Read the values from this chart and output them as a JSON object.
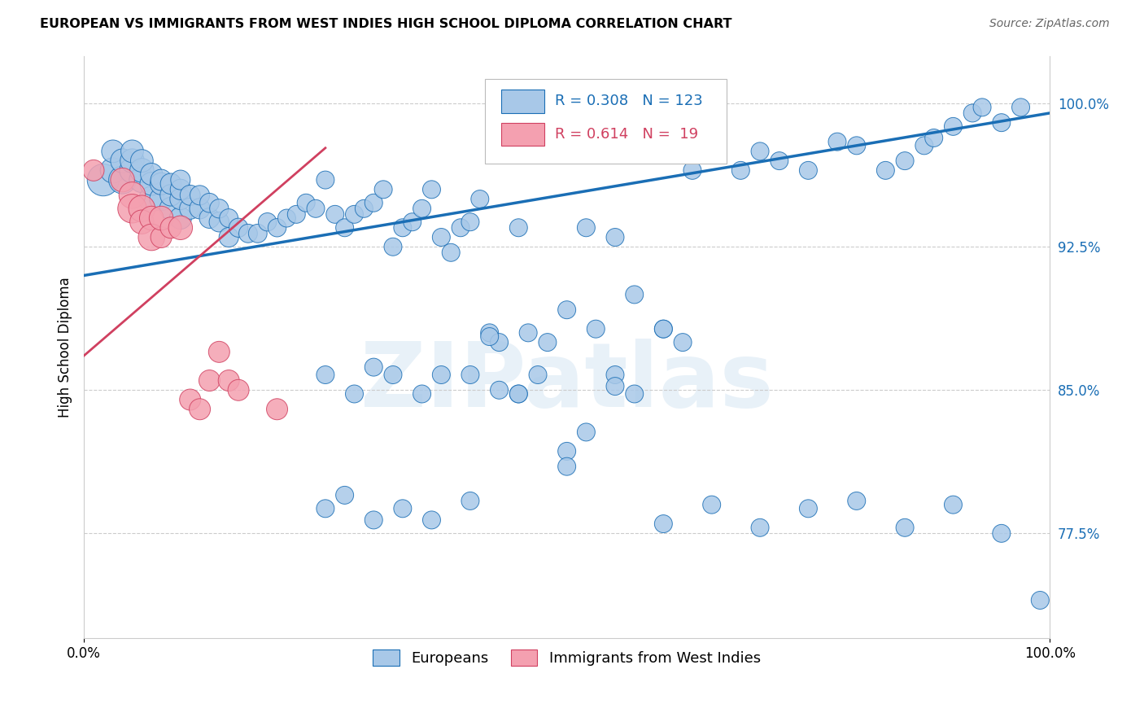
{
  "title": "EUROPEAN VS IMMIGRANTS FROM WEST INDIES HIGH SCHOOL DIPLOMA CORRELATION CHART",
  "source": "Source: ZipAtlas.com",
  "ylabel": "High School Diploma",
  "xlabel": "",
  "xlim": [
    0.0,
    1.0
  ],
  "ylim": [
    0.72,
    1.025
  ],
  "yticks": [
    0.775,
    0.85,
    0.925,
    1.0
  ],
  "ytick_labels": [
    "77.5%",
    "85.0%",
    "92.5%",
    "100.0%"
  ],
  "xtick_labels": [
    "0.0%",
    "100.0%"
  ],
  "xticks": [
    0.0,
    1.0
  ],
  "blue_R": 0.308,
  "blue_N": 123,
  "pink_R": 0.614,
  "pink_N": 19,
  "blue_color": "#a8c8e8",
  "pink_color": "#f4a0b0",
  "line_blue": "#1a6eb5",
  "line_pink": "#d04060",
  "watermark": "ZIPatlas",
  "blue_line_x0": 0.0,
  "blue_line_y0": 0.91,
  "blue_line_x1": 1.0,
  "blue_line_y1": 0.995,
  "pink_line_x0": 0.0,
  "pink_line_y0": 0.868,
  "pink_line_x1": 0.2,
  "pink_line_y1": 0.955,
  "blue_points_x": [
    0.02,
    0.03,
    0.03,
    0.04,
    0.04,
    0.05,
    0.05,
    0.05,
    0.06,
    0.06,
    0.06,
    0.07,
    0.07,
    0.07,
    0.08,
    0.08,
    0.08,
    0.09,
    0.09,
    0.09,
    0.1,
    0.1,
    0.1,
    0.1,
    0.11,
    0.11,
    0.12,
    0.12,
    0.13,
    0.13,
    0.14,
    0.14,
    0.15,
    0.15,
    0.16,
    0.17,
    0.18,
    0.19,
    0.2,
    0.21,
    0.22,
    0.23,
    0.24,
    0.25,
    0.26,
    0.27,
    0.28,
    0.29,
    0.3,
    0.31,
    0.32,
    0.33,
    0.34,
    0.35,
    0.36,
    0.37,
    0.38,
    0.39,
    0.4,
    0.41,
    0.42,
    0.43,
    0.45,
    0.46,
    0.48,
    0.5,
    0.52,
    0.53,
    0.55,
    0.57,
    0.6,
    0.62,
    0.63,
    0.65,
    0.68,
    0.7,
    0.72,
    0.75,
    0.78,
    0.8,
    0.83,
    0.85,
    0.87,
    0.88,
    0.9,
    0.92,
    0.93,
    0.95,
    0.97,
    0.99,
    0.25,
    0.28,
    0.3,
    0.32,
    0.35,
    0.37,
    0.4,
    0.42,
    0.43,
    0.45,
    0.47,
    0.5,
    0.52,
    0.55,
    0.57,
    0.6,
    0.25,
    0.27,
    0.3,
    0.33,
    0.36,
    0.4,
    0.45,
    0.5,
    0.55,
    0.6,
    0.65,
    0.7,
    0.75,
    0.8,
    0.85,
    0.9,
    0.95
  ],
  "blue_points_y": [
    0.96,
    0.965,
    0.975,
    0.96,
    0.97,
    0.965,
    0.97,
    0.975,
    0.96,
    0.965,
    0.97,
    0.95,
    0.958,
    0.963,
    0.95,
    0.958,
    0.96,
    0.945,
    0.952,
    0.958,
    0.94,
    0.95,
    0.955,
    0.96,
    0.945,
    0.952,
    0.945,
    0.952,
    0.94,
    0.948,
    0.938,
    0.945,
    0.93,
    0.94,
    0.935,
    0.932,
    0.932,
    0.938,
    0.935,
    0.94,
    0.942,
    0.948,
    0.945,
    0.96,
    0.942,
    0.935,
    0.942,
    0.945,
    0.948,
    0.955,
    0.925,
    0.935,
    0.938,
    0.945,
    0.955,
    0.93,
    0.922,
    0.935,
    0.938,
    0.95,
    0.88,
    0.875,
    0.935,
    0.88,
    0.875,
    0.892,
    0.935,
    0.882,
    0.93,
    0.9,
    0.882,
    0.875,
    0.965,
    0.975,
    0.965,
    0.975,
    0.97,
    0.965,
    0.98,
    0.978,
    0.965,
    0.97,
    0.978,
    0.982,
    0.988,
    0.995,
    0.998,
    0.99,
    0.998,
    0.74,
    0.858,
    0.848,
    0.862,
    0.858,
    0.848,
    0.858,
    0.858,
    0.878,
    0.85,
    0.848,
    0.858,
    0.818,
    0.828,
    0.858,
    0.848,
    0.882,
    0.788,
    0.795,
    0.782,
    0.788,
    0.782,
    0.792,
    0.848,
    0.81,
    0.852,
    0.78,
    0.79,
    0.778,
    0.788,
    0.792,
    0.778,
    0.79,
    0.775
  ],
  "blue_sizes": [
    800,
    500,
    400,
    600,
    450,
    500,
    450,
    400,
    500,
    450,
    400,
    500,
    420,
    380,
    420,
    380,
    350,
    400,
    360,
    340,
    380,
    350,
    330,
    300,
    350,
    320,
    330,
    300,
    320,
    290,
    310,
    280,
    300,
    270,
    280,
    270,
    270,
    260,
    260,
    250,
    250,
    250,
    250,
    250,
    250,
    250,
    250,
    250,
    250,
    250,
    250,
    250,
    250,
    250,
    250,
    250,
    250,
    250,
    250,
    250,
    250,
    250,
    250,
    250,
    250,
    250,
    250,
    250,
    250,
    250,
    250,
    250,
    250,
    250,
    250,
    250,
    250,
    250,
    250,
    250,
    250,
    250,
    250,
    250,
    250,
    250,
    250,
    250,
    250,
    250,
    250,
    250,
    250,
    250,
    250,
    250,
    250,
    250,
    250,
    250,
    250,
    250,
    250,
    250,
    250,
    250,
    250,
    250,
    250,
    250,
    250,
    250,
    250,
    250,
    250,
    250,
    250,
    250,
    250,
    250,
    250,
    250,
    250
  ],
  "pink_points_x": [
    0.01,
    0.04,
    0.05,
    0.05,
    0.06,
    0.06,
    0.07,
    0.07,
    0.08,
    0.08,
    0.09,
    0.1,
    0.11,
    0.12,
    0.13,
    0.14,
    0.15,
    0.16,
    0.2
  ],
  "pink_points_y": [
    0.965,
    0.96,
    0.952,
    0.945,
    0.945,
    0.938,
    0.94,
    0.93,
    0.93,
    0.94,
    0.935,
    0.935,
    0.845,
    0.84,
    0.855,
    0.87,
    0.855,
    0.85,
    0.84
  ],
  "pink_sizes": [
    350,
    450,
    550,
    650,
    550,
    450,
    450,
    550,
    350,
    450,
    350,
    450,
    350,
    350,
    350,
    350,
    350,
    350,
    350
  ]
}
